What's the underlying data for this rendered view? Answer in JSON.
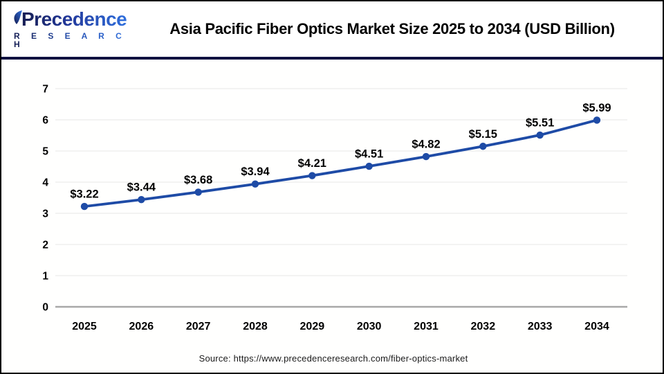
{
  "header": {
    "logo": {
      "brand": "Precedence",
      "sub": "R E S E A R C H"
    },
    "title": "Asia Pacific Fiber Optics Market Size 2025 to 2034 (USD Billion)"
  },
  "chart_data": {
    "type": "line",
    "title": "Asia Pacific Fiber Optics Market Size 2025 to 2034 (USD Billion)",
    "categories": [
      "2025",
      "2026",
      "2027",
      "2028",
      "2029",
      "2030",
      "2031",
      "2032",
      "2033",
      "2034"
    ],
    "values": [
      3.22,
      3.44,
      3.68,
      3.94,
      4.21,
      4.51,
      4.82,
      5.15,
      5.51,
      5.99
    ],
    "point_labels": [
      "$3.22",
      "$3.44",
      "$3.68",
      "$3.94",
      "$4.21",
      "$4.51",
      "$4.82",
      "$5.15",
      "$5.51",
      "$5.99"
    ],
    "xlabel": "",
    "ylabel": "",
    "ylim": [
      0,
      7
    ],
    "yticks": [
      0,
      1,
      2,
      3,
      4,
      5,
      6,
      7
    ],
    "grid": true,
    "legend": "none",
    "line_color": "#1e4ba6",
    "marker_color": "#1e4ba6",
    "gridline_color": "#ececec",
    "axis_line_color": "#a8a8a8",
    "label_color": "#000000"
  },
  "footer": {
    "source": "Source: https://www.precedenceresearch.com/fiber-optics-market"
  },
  "colors": {
    "divider_navy": "#0d1140",
    "frame_border": "#000000",
    "logo_navy": "#151d52",
    "logo_blue": "#2f6fdd"
  }
}
